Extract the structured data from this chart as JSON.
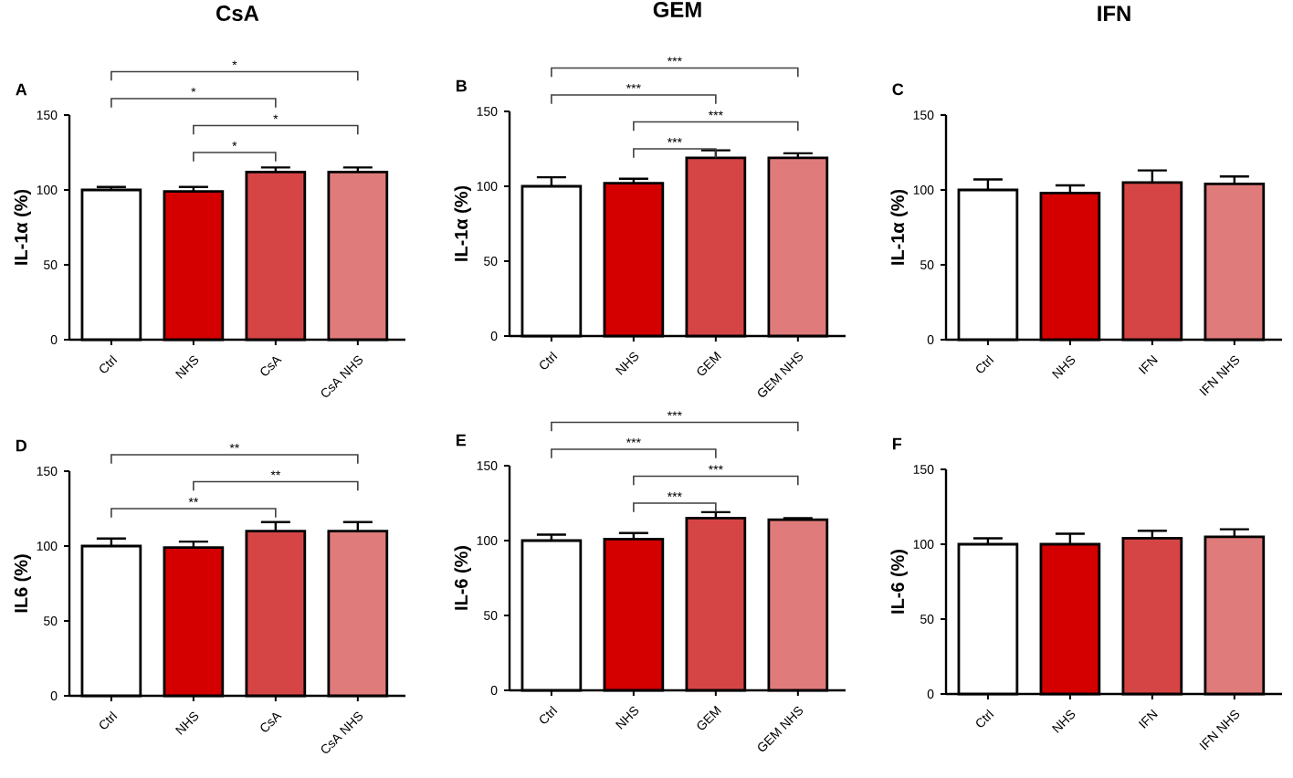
{
  "chart_data": [
    {
      "type": "bar",
      "title": "CsA",
      "subtitle": "A",
      "ylabel": "IL-1α (%)",
      "categories": [
        "Ctrl",
        "NHS",
        "CsA",
        "CsA NHS"
      ],
      "values": [
        100,
        99,
        112,
        112
      ],
      "errors": [
        2,
        3,
        3,
        3
      ],
      "colors": [
        "#ffffff",
        "#d40000",
        "#d64545",
        "#e07b7b"
      ],
      "ylim": [
        0,
        150
      ],
      "yticks": [
        0,
        50,
        100,
        150
      ],
      "annotations": [
        "*",
        "*",
        "*",
        "*"
      ]
    },
    {
      "type": "bar",
      "title": "GEM",
      "subtitle": "B",
      "ylabel": "IL-1α (%)",
      "categories": [
        "Ctrl",
        "NHS",
        "GEM",
        "GEM NHS"
      ],
      "values": [
        100,
        102,
        119,
        119
      ],
      "errors": [
        6,
        3,
        5,
        3
      ],
      "colors": [
        "#ffffff",
        "#d40000",
        "#d64545",
        "#e07b7b"
      ],
      "ylim": [
        0,
        150
      ],
      "yticks": [
        0,
        50,
        100,
        150
      ],
      "annotations": [
        "***",
        "***",
        "***",
        "***"
      ]
    },
    {
      "type": "bar",
      "title": "IFN",
      "subtitle": "C",
      "ylabel": "IL-1α (%)",
      "categories": [
        "Ctrl",
        "NHS",
        "IFN",
        "IFN NHS"
      ],
      "values": [
        100,
        98,
        105,
        104
      ],
      "errors": [
        7,
        5,
        8,
        5
      ],
      "colors": [
        "#ffffff",
        "#d40000",
        "#d64545",
        "#e07b7b"
      ],
      "ylim": [
        0,
        150
      ],
      "yticks": [
        0,
        50,
        100,
        150
      ]
    },
    {
      "type": "bar",
      "subtitle": "D",
      "ylabel": "IL6 (%)",
      "categories": [
        "Ctrl",
        "NHS",
        "CsA",
        "CsA NHS"
      ],
      "values": [
        100,
        99,
        110,
        110
      ],
      "errors": [
        5,
        4,
        6,
        6
      ],
      "colors": [
        "#ffffff",
        "#d40000",
        "#d64545",
        "#e07b7b"
      ],
      "ylim": [
        0,
        150
      ],
      "yticks": [
        0,
        50,
        100,
        150
      ],
      "annotations": [
        "**",
        "**",
        "**"
      ]
    },
    {
      "type": "bar",
      "subtitle": "E",
      "ylabel": "IL-6 (%)",
      "categories": [
        "Ctrl",
        "NHS",
        "GEM",
        "GEM NHS"
      ],
      "values": [
        100,
        101,
        115,
        114
      ],
      "errors": [
        4,
        4,
        4,
        1
      ],
      "colors": [
        "#ffffff",
        "#d40000",
        "#d64545",
        "#e07b7b"
      ],
      "ylim": [
        0,
        150
      ],
      "yticks": [
        0,
        50,
        100,
        150
      ],
      "annotations": [
        "***",
        "***",
        "***",
        "***"
      ]
    },
    {
      "type": "bar",
      "subtitle": "F",
      "ylabel": "IL-6 (%)",
      "categories": [
        "Ctrl",
        "NHS",
        "IFN",
        "IFN NHS"
      ],
      "values": [
        100,
        100,
        104,
        105
      ],
      "errors": [
        4,
        7,
        5,
        5
      ],
      "colors": [
        "#ffffff",
        "#d40000",
        "#d64545",
        "#e07b7b"
      ],
      "ylim": [
        0,
        150
      ],
      "yticks": [
        0,
        50,
        100,
        150
      ]
    }
  ]
}
